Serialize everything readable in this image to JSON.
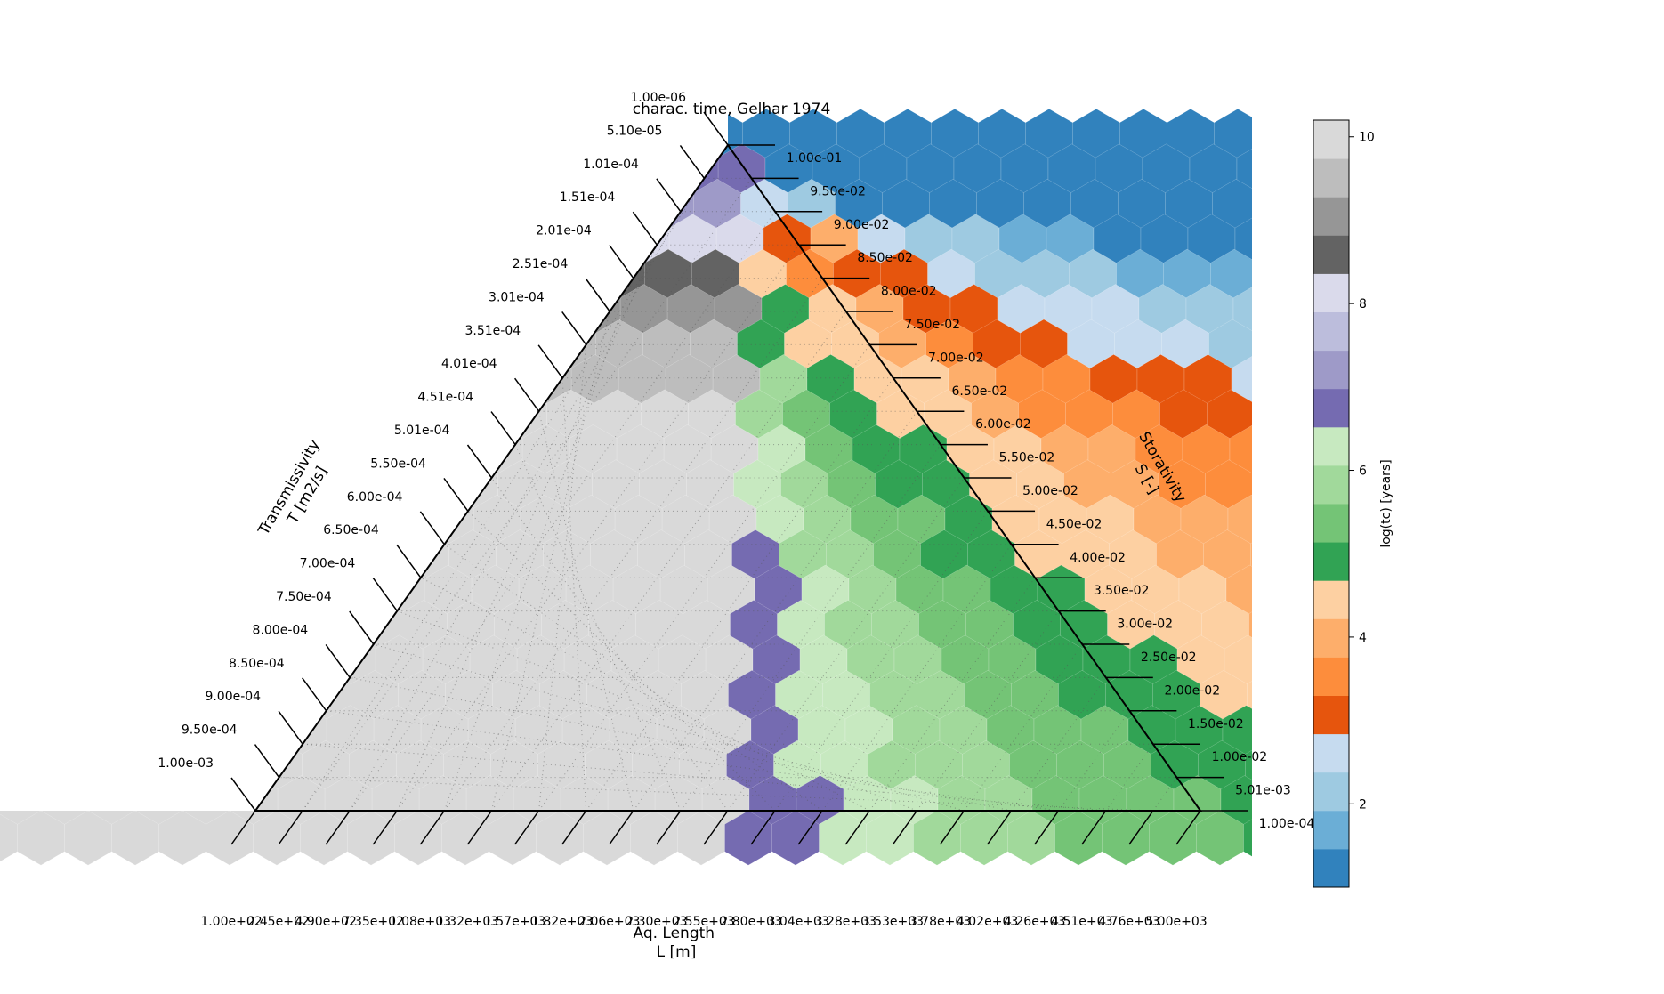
{
  "chart_data": {
    "type": "ternary-hexbin",
    "title": "charac. time, Gelhar 1974",
    "axes": {
      "left": {
        "label_line1": "Transmissivity",
        "label_line2": "T [m2/s]",
        "ticks": [
          "1.00e-06",
          "5.10e-05",
          "1.01e-04",
          "1.51e-04",
          "2.01e-04",
          "2.51e-04",
          "3.01e-04",
          "3.51e-04",
          "4.01e-04",
          "4.51e-04",
          "5.01e-04",
          "5.50e-04",
          "6.00e-04",
          "6.50e-04",
          "7.00e-04",
          "7.50e-04",
          "8.00e-04",
          "8.50e-04",
          "9.00e-04",
          "9.50e-04",
          "1.00e-03"
        ],
        "range": [
          1e-06,
          0.001
        ]
      },
      "right": {
        "label_line1": "Storativity",
        "label_line2": "S [-]",
        "ticks": [
          "1.00e-01",
          "9.50e-02",
          "9.00e-02",
          "8.50e-02",
          "8.00e-02",
          "7.50e-02",
          "7.00e-02",
          "6.50e-02",
          "6.00e-02",
          "5.50e-02",
          "5.00e-02",
          "4.50e-02",
          "4.00e-02",
          "3.50e-02",
          "3.00e-02",
          "2.50e-02",
          "2.00e-02",
          "1.50e-02",
          "1.00e-02",
          "5.01e-03",
          "1.00e-04"
        ],
        "range": [
          0.0001,
          0.1
        ]
      },
      "bottom": {
        "label_line1": "Aq. Length",
        "label_line2": "L [m]",
        "ticks": [
          "1.00e+02",
          "2.45e+02",
          "4.90e+02",
          "7.35e+02",
          "1.08e+03",
          "1.32e+03",
          "1.57e+03",
          "1.82e+03",
          "2.06e+03",
          "2.30e+03",
          "2.55e+03",
          "2.80e+03",
          "3.04e+03",
          "3.28e+03",
          "3.53e+03",
          "3.78e+03",
          "4.02e+03",
          "4.26e+03",
          "4.51e+03",
          "4.76e+03",
          "5.00e+03"
        ],
        "range": [
          100,
          5000
        ]
      }
    },
    "colorbar": {
      "label": "log(tc) [years]",
      "ticks": [
        "2",
        "4",
        "6",
        "8",
        "10"
      ],
      "range": [
        1,
        10.2
      ],
      "colors": [
        "#3182bd",
        "#6baed6",
        "#9ecae1",
        "#c6dbef",
        "#e6550d",
        "#fd8d3c",
        "#fdae6b",
        "#fdd0a2",
        "#31a354",
        "#74c476",
        "#a1d99b",
        "#c7e9c0",
        "#756bb1",
        "#9e9ac8",
        "#bcbddc",
        "#dadaeb",
        "#636363",
        "#969696",
        "#bdbdbd",
        "#d9d9d9"
      ],
      "bins": [
        1.0,
        1.46,
        1.92,
        2.38,
        2.84,
        3.3,
        3.76,
        4.22,
        4.68,
        5.14,
        5.6,
        6.06,
        6.52,
        6.98,
        7.44,
        7.9,
        8.36,
        8.82,
        9.28,
        9.74,
        10.2
      ]
    },
    "grid": "dotted",
    "hexbin": {
      "rows": 21,
      "cols": 21,
      "values": [
        [
          0,
          0,
          0,
          0,
          0,
          0,
          0,
          0,
          0,
          0,
          0,
          0,
          0,
          0,
          0,
          0,
          0,
          0,
          0,
          0,
          0
        ],
        [
          12,
          0,
          0,
          0,
          0,
          0,
          0,
          0,
          0,
          0,
          0,
          0,
          0,
          0,
          0,
          0,
          0,
          0,
          0,
          0,
          0
        ],
        [
          13,
          3,
          2,
          0,
          0,
          0,
          0,
          0,
          0,
          0,
          0,
          0,
          0,
          0,
          0,
          0,
          0,
          0,
          0,
          0,
          0
        ],
        [
          15,
          4,
          6,
          3,
          2,
          2,
          1,
          1,
          0,
          0,
          0,
          0,
          0,
          0,
          0,
          0,
          0,
          0,
          0,
          0,
          0
        ],
        [
          16,
          7,
          5,
          4,
          4,
          3,
          2,
          2,
          2,
          1,
          1,
          1,
          0,
          0,
          0,
          0,
          0,
          0,
          0,
          0,
          0
        ],
        [
          17,
          8,
          7,
          6,
          4,
          4,
          3,
          3,
          3,
          2,
          2,
          2,
          1,
          1,
          1,
          1,
          1,
          1,
          1,
          1,
          1
        ],
        [
          18,
          8,
          7,
          7,
          6,
          5,
          4,
          4,
          3,
          3,
          3,
          2,
          2,
          2,
          2,
          2,
          2,
          1,
          1,
          1,
          1
        ],
        [
          18,
          10,
          8,
          7,
          7,
          6,
          5,
          5,
          4,
          4,
          4,
          3,
          3,
          3,
          2,
          2,
          2,
          2,
          2,
          2,
          2
        ],
        [
          19,
          10,
          9,
          8,
          7,
          7,
          6,
          5,
          5,
          5,
          4,
          4,
          4,
          4,
          3,
          3,
          3,
          3,
          2,
          2,
          2
        ],
        [
          19,
          11,
          9,
          8,
          8,
          7,
          7,
          6,
          6,
          5,
          5,
          5,
          4,
          4,
          4,
          4,
          3,
          3,
          3,
          3,
          3
        ],
        [
          19,
          11,
          10,
          9,
          8,
          8,
          7,
          7,
          6,
          6,
          5,
          5,
          5,
          5,
          4,
          4,
          4,
          4,
          4,
          3,
          3
        ],
        [
          19,
          11,
          10,
          9,
          9,
          8,
          7,
          7,
          7,
          6,
          6,
          6,
          5,
          5,
          5,
          5,
          4,
          4,
          4,
          4,
          4
        ],
        [
          19,
          12,
          10,
          10,
          9,
          8,
          8,
          7,
          7,
          7,
          6,
          6,
          6,
          5,
          5,
          5,
          5,
          5,
          4,
          4,
          4
        ],
        [
          19,
          12,
          11,
          10,
          9,
          9,
          8,
          8,
          7,
          7,
          7,
          6,
          6,
          6,
          6,
          5,
          5,
          5,
          5,
          5,
          4
        ],
        [
          19,
          12,
          11,
          10,
          10,
          9,
          9,
          8,
          8,
          7,
          7,
          7,
          6,
          6,
          6,
          6,
          6,
          5,
          5,
          5,
          5
        ],
        [
          19,
          12,
          11,
          10,
          10,
          9,
          9,
          8,
          8,
          8,
          7,
          7,
          7,
          7,
          6,
          6,
          6,
          6,
          5,
          5,
          5
        ],
        [
          19,
          12,
          11,
          11,
          10,
          10,
          9,
          9,
          8,
          8,
          8,
          7,
          7,
          7,
          7,
          6,
          6,
          6,
          6,
          6,
          5
        ],
        [
          19,
          12,
          11,
          11,
          10,
          10,
          9,
          9,
          9,
          8,
          8,
          8,
          7,
          7,
          7,
          7,
          7,
          6,
          6,
          6,
          6
        ],
        [
          19,
          12,
          11,
          11,
          10,
          10,
          10,
          9,
          9,
          9,
          8,
          8,
          8,
          8,
          7,
          7,
          7,
          7,
          6,
          6,
          6
        ],
        [
          19,
          12,
          12,
          11,
          11,
          10,
          10,
          9,
          9,
          9,
          9,
          8,
          8,
          8,
          8,
          7,
          7,
          7,
          7,
          7,
          6
        ],
        [
          19,
          12,
          12,
          11,
          11,
          10,
          10,
          10,
          9,
          9,
          9,
          9,
          8,
          8,
          8,
          8,
          7,
          7,
          7,
          7,
          7
        ]
      ]
    }
  }
}
